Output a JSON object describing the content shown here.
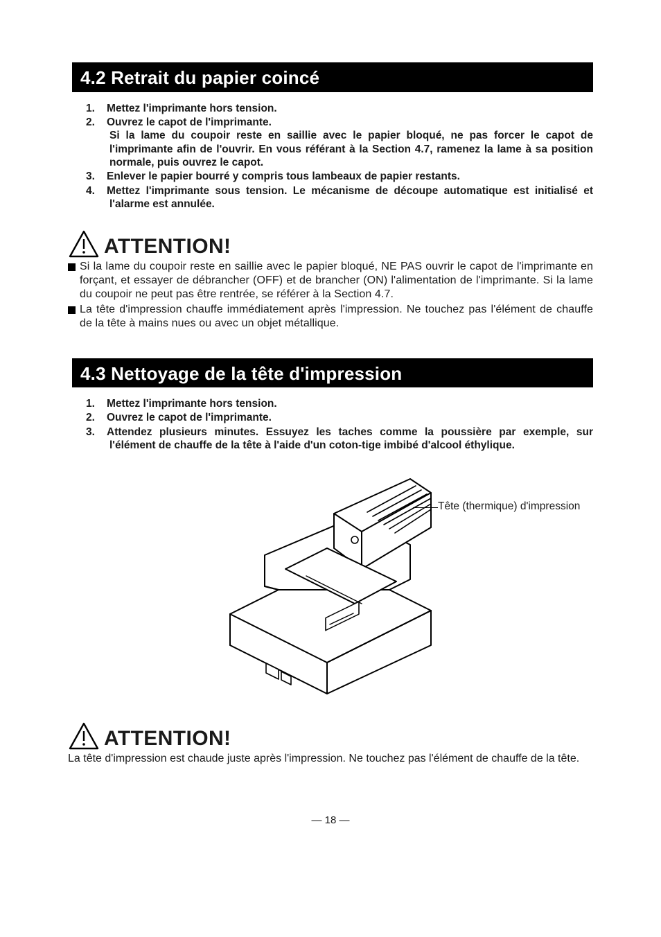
{
  "section42": {
    "title": "4.2  Retrait du papier coincé",
    "steps": [
      "Mettez l'imprimante hors tension.",
      "Ouvrez le capot de l'imprimante.\nSi la lame du coupoir reste en saillie avec le papier bloqué, ne pas forcer le capot de l'imprimante afin de l'ouvrir.  En vous référant à la Section 4.7, ramenez la lame à sa position normale, puis ouvrez le capot.",
      "Enlever le papier bourré y compris tous lambeaux de papier restants.",
      "Mettez l'imprimante sous tension.  Le mécanisme de découpe automatique est initialisé et l'alarme est annulée."
    ],
    "attention_label": "ATTENTION!",
    "bullets": [
      "Si la lame du coupoir reste en saillie avec le papier bloqué, NE PAS ouvrir le capot de l'imprimante en forçant, et essayer de débrancher (OFF) et de brancher (ON) l'alimentation de l'imprimante.  Si la lame du coupoir ne peut pas être rentrée, se référer à la Section 4.7.",
      "La tête d'impression chauffe immédiatement après l'impression. Ne touchez pas l'élément de chauffe de la tête à mains nues ou avec un objet métallique."
    ]
  },
  "section43": {
    "title": "4.3  Nettoyage de la tête d'impression",
    "steps": [
      "Mettez l'imprimante hors tension.",
      "Ouvrez le capot de l'imprimante.",
      "Attendez plusieurs minutes.  Essuyez les taches comme la poussière par exemple, sur l'élément de chauffe de la tête à l'aide d'un coton-tige imbibé d'alcool éthylique."
    ],
    "figure_callout": "Tête (thermique) d'impression",
    "attention_label": "ATTENTION!",
    "attention_text": "La tête d'impression est chaude juste après l'impression. Ne touchez pas l'élément de chauffe de la tête."
  },
  "page_number": "— 18 —",
  "colors": {
    "bg": "#ffffff",
    "text": "#1a1a1a",
    "bar_bg": "#000000",
    "bar_fg": "#ffffff"
  }
}
